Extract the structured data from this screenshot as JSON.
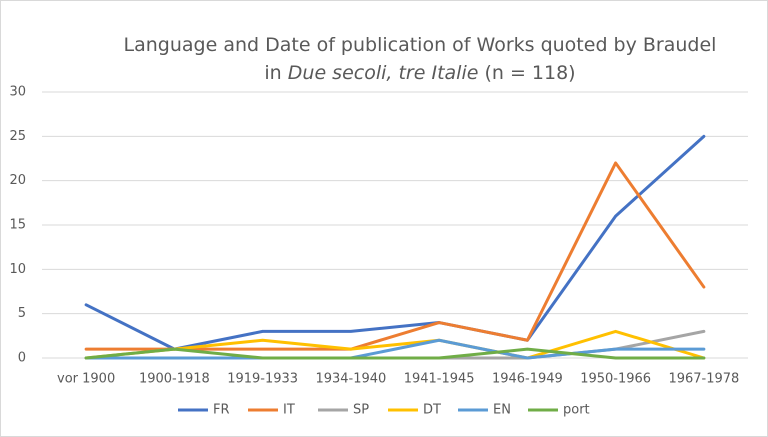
{
  "chart_data": {
    "type": "line",
    "title_lines": [
      [
        {
          "text": "Language and Date of publication of Works quoted by Braudel"
        }
      ],
      [
        {
          "text": "in "
        },
        {
          "text": "Due secoli, tre Italie",
          "italic": true
        },
        {
          "text": " (n = 118)"
        }
      ]
    ],
    "categories": [
      "vor 1900",
      "1900-1918",
      "1919-1933",
      "1934-1940",
      "1941-1945",
      "1946-1949",
      "1950-1966",
      "1967-1978"
    ],
    "series": [
      {
        "name": "FR",
        "color": "#4472c4",
        "values": [
          6,
          1,
          3,
          3,
          4,
          2,
          16,
          25
        ]
      },
      {
        "name": "IT",
        "color": "#ed7d31",
        "values": [
          1,
          1,
          1,
          1,
          4,
          2,
          22,
          8
        ]
      },
      {
        "name": "SP",
        "color": "#a5a5a5",
        "values": [
          0,
          0,
          0,
          0,
          0,
          0,
          1,
          3
        ]
      },
      {
        "name": "DT",
        "color": "#ffc000",
        "values": [
          0,
          1,
          2,
          1,
          2,
          0,
          3,
          0
        ]
      },
      {
        "name": "EN",
        "color": "#5b9bd5",
        "values": [
          0,
          0,
          0,
          0,
          2,
          0,
          1,
          1
        ]
      },
      {
        "name": "port",
        "color": "#70ad47",
        "values": [
          0,
          1,
          0,
          0,
          0,
          1,
          0,
          0
        ]
      }
    ],
    "ylim": [
      0,
      30
    ],
    "yticks": [
      0,
      5,
      10,
      15,
      20,
      25,
      30
    ],
    "grid": true,
    "legend": "bottom"
  }
}
